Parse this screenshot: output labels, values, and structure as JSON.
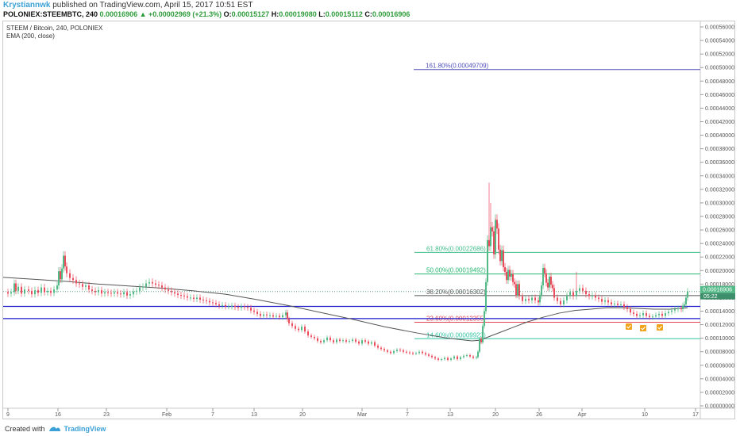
{
  "header": {
    "author": "Krystiannwk",
    "published": "published on TradingView.com, April 15, 2017 10:51 EST",
    "symbol": "POLONIEX:STEEMBTC, 240",
    "last": "0.00016906",
    "change": "▲ +0.00002969 (+21.3%)",
    "o_label": "O:",
    "o": "0.00015127",
    "h_label": "H:",
    "h": "0.00019080",
    "l_label": "L:",
    "l": "0.00015112",
    "c_label": "C:",
    "c": "0.00016906"
  },
  "legend": {
    "series": "STEEM / Bitcoin, 240, POLONIEX",
    "ema": "EMA (200, close)"
  },
  "footer": {
    "created": "Created with",
    "brand": "TradingView"
  },
  "colors": {
    "up": "#53b987",
    "down": "#eb4d5c",
    "ema": "#555555",
    "support": "#1a1acc",
    "current": "#5a9e82"
  },
  "chart_data": {
    "type": "candlestick",
    "ylim": [
      0.0,
      0.00057
    ],
    "y_ticks": [
      "0.00056000",
      "0.00054000",
      "0.00052000",
      "0.00050000",
      "0.00048000",
      "0.00046000",
      "0.00044000",
      "0.00042000",
      "0.00040000",
      "0.00038000",
      "0.00036000",
      "0.00034000",
      "0.00032000",
      "0.00030000",
      "0.00028000",
      "0.00026000",
      "0.00024000",
      "0.00022000",
      "0.00020000",
      "0.00018000",
      "0.00016000",
      "0.00014000",
      "0.00012000",
      "0.00010000",
      "0.00008000",
      "0.00006000",
      "0.00004000",
      "0.00002000",
      "0.00000000"
    ],
    "y_tick_values": [
      0.00056,
      0.00054,
      0.00052,
      0.0005,
      0.00048,
      0.00046,
      0.00044,
      0.00042,
      0.0004,
      0.00038,
      0.00036,
      0.00034,
      0.00032,
      0.0003,
      0.00028,
      0.00026,
      0.00024,
      0.00022,
      0.0002,
      0.00018,
      0.00016,
      0.00014,
      0.00012,
      0.0001,
      8e-05,
      6e-05,
      4e-05,
      2e-05,
      0.0
    ],
    "x_ticks": [
      "9",
      "16",
      "23",
      "Feb",
      "7",
      "13",
      "20",
      "Mar",
      "7",
      "13",
      "20",
      "26",
      "Apr",
      "10",
      "17"
    ],
    "price_series": [
      [
        0,
        0.000168
      ],
      [
        6,
        0.000166
      ],
      [
        10,
        0.000168
      ],
      [
        14,
        0.000181
      ],
      [
        16,
        0.00017
      ],
      [
        19,
        0.000176
      ],
      [
        23,
        0.000166
      ],
      [
        27,
        0.000172
      ],
      [
        32,
        0.00017
      ],
      [
        36,
        0.000165
      ],
      [
        40,
        0.000171
      ],
      [
        44,
        0.000167
      ],
      [
        48,
        0.000175
      ],
      [
        52,
        0.000168
      ],
      [
        56,
        0.00017
      ],
      [
        60,
        0.000167
      ],
      [
        64,
        0.000172
      ],
      [
        68,
        0.000178
      ],
      [
        70,
        0.000199
      ],
      [
        72,
        0.000187
      ],
      [
        74,
        0.000203
      ],
      [
        76,
        0.000222
      ],
      [
        78,
        0.000206
      ],
      [
        80,
        0.000196
      ],
      [
        84,
        0.000189
      ],
      [
        88,
        0.000186
      ],
      [
        92,
        0.000181
      ],
      [
        96,
        0.00018
      ],
      [
        100,
        0.000176
      ],
      [
        104,
        0.000178
      ],
      [
        108,
        0.000172
      ],
      [
        112,
        0.00017
      ],
      [
        116,
        0.000168
      ],
      [
        120,
        0.000171
      ],
      [
        124,
        0.000166
      ],
      [
        128,
        0.000168
      ],
      [
        132,
        0.000167
      ],
      [
        136,
        0.000166
      ],
      [
        140,
        0.000168
      ],
      [
        144,
        0.000166
      ],
      [
        148,
        0.000165
      ],
      [
        152,
        0.000168
      ],
      [
        156,
        0.000163
      ],
      [
        160,
        0.000165
      ],
      [
        164,
        0.000169
      ],
      [
        168,
        0.00017
      ],
      [
        172,
        0.000175
      ],
      [
        176,
        0.000176
      ],
      [
        180,
        0.000181
      ],
      [
        184,
        0.000183
      ],
      [
        188,
        0.000181
      ],
      [
        192,
        0.000179
      ],
      [
        196,
        0.000178
      ],
      [
        200,
        0.000175
      ],
      [
        204,
        0.000172
      ],
      [
        208,
        0.00017
      ],
      [
        212,
        0.000168
      ],
      [
        216,
        0.000166
      ],
      [
        220,
        0.000164
      ],
      [
        224,
        0.000163
      ],
      [
        228,
        0.000162
      ],
      [
        232,
        0.00016
      ],
      [
        236,
        0.00016
      ],
      [
        240,
        0.000158
      ],
      [
        244,
        0.00016
      ],
      [
        248,
        0.000157
      ],
      [
        252,
        0.000156
      ],
      [
        256,
        0.000155
      ],
      [
        260,
        0.000153
      ],
      [
        264,
        0.000152
      ],
      [
        268,
        0.00015
      ],
      [
        272,
        0.000148
      ],
      [
        276,
        0.000149
      ],
      [
        280,
        0.000147
      ],
      [
        284,
        0.000147
      ],
      [
        288,
        0.000148
      ],
      [
        292,
        0.000146
      ],
      [
        296,
        0.000145
      ],
      [
        300,
        0.000147
      ],
      [
        304,
        0.000146
      ],
      [
        308,
        0.000145
      ],
      [
        312,
        0.000141
      ],
      [
        316,
        0.000139
      ],
      [
        320,
        0.000136
      ],
      [
        324,
        0.000133
      ],
      [
        328,
        0.000135
      ],
      [
        332,
        0.000134
      ],
      [
        336,
        0.000134
      ],
      [
        340,
        0.000132
      ],
      [
        344,
        0.000133
      ],
      [
        348,
        0.000131
      ],
      [
        352,
        0.000134
      ],
      [
        356,
        0.000138
      ],
      [
        358,
        0.000128
      ],
      [
        360,
        0.000122
      ],
      [
        364,
        0.000118
      ],
      [
        368,
        0.000114
      ],
      [
        372,
        0.000112
      ],
      [
        376,
        0.000117
      ],
      [
        380,
        0.00011
      ],
      [
        384,
        0.000104
      ],
      [
        388,
        0.000102
      ],
      [
        392,
        0.0001
      ],
      [
        396,
        9.6e-05
      ],
      [
        400,
        9.4e-05
      ],
      [
        404,
        9.7e-05
      ],
      [
        408,
        0.000101
      ],
      [
        412,
        9.7e-05
      ],
      [
        416,
        9.4e-05
      ],
      [
        420,
        9.8e-05
      ],
      [
        424,
        9.6e-05
      ],
      [
        428,
        9.7e-05
      ],
      [
        432,
        9.5e-05
      ],
      [
        436,
        9.6e-05
      ],
      [
        440,
        9.8e-05
      ],
      [
        444,
        9.5e-05
      ],
      [
        448,
        9.2e-05
      ],
      [
        452,
        9.7e-05
      ],
      [
        456,
        9.5e-05
      ],
      [
        460,
        9.2e-05
      ],
      [
        464,
        9.4e-05
      ],
      [
        468,
        8.9e-05
      ],
      [
        472,
        8.6e-05
      ],
      [
        476,
        8.4e-05
      ],
      [
        480,
        8.2e-05
      ],
      [
        484,
        8e-05
      ],
      [
        488,
        7.8e-05
      ],
      [
        492,
        8.1e-05
      ],
      [
        496,
        8.3e-05
      ],
      [
        500,
        8.2e-05
      ],
      [
        504,
        8e-05
      ],
      [
        508,
        7.9e-05
      ],
      [
        512,
        7.8e-05
      ],
      [
        516,
        7.7e-05
      ],
      [
        520,
        7.8e-05
      ],
      [
        524,
        8e-05
      ],
      [
        528,
        7.8e-05
      ],
      [
        532,
        7.6e-05
      ],
      [
        536,
        7.4e-05
      ],
      [
        540,
        7.2e-05
      ],
      [
        544,
        7e-05
      ],
      [
        548,
        6.8e-05
      ],
      [
        552,
        6.9e-05
      ],
      [
        556,
        7.1e-05
      ],
      [
        560,
        6.8e-05
      ],
      [
        564,
        7e-05
      ],
      [
        568,
        7.3e-05
      ],
      [
        572,
        6.9e-05
      ],
      [
        576,
        7.2e-05
      ],
      [
        580,
        7.4e-05
      ],
      [
        584,
        7.5e-05
      ],
      [
        588,
        7.3e-05
      ],
      [
        592,
        7.1e-05
      ],
      [
        596,
        7.2e-05
      ],
      [
        598,
        8e-05
      ],
      [
        600,
        9.9e-05
      ],
      [
        602,
        9.4e-05
      ],
      [
        604,
        0.000118
      ],
      [
        606,
        0.00014
      ],
      [
        608,
        0.000183
      ],
      [
        610,
        0.000245
      ],
      [
        612,
        0.000236
      ],
      [
        614,
        0.000264
      ],
      [
        616,
        0.000258
      ],
      [
        618,
        0.000224
      ],
      [
        620,
        0.000275
      ],
      [
        622,
        0.000262
      ],
      [
        624,
        0.000231
      ],
      [
        626,
        0.000214
      ],
      [
        628,
        0.00023
      ],
      [
        630,
        0.000205
      ],
      [
        632,
        0.000198
      ],
      [
        634,
        0.000186
      ],
      [
        636,
        0.000201
      ],
      [
        638,
        0.000191
      ],
      [
        640,
        0.000195
      ],
      [
        642,
        0.000183
      ],
      [
        644,
        0.00018
      ],
      [
        646,
        0.000164
      ],
      [
        648,
        0.00018
      ],
      [
        650,
        0.000162
      ],
      [
        654,
        0.000155
      ],
      [
        658,
        0.000158
      ],
      [
        662,
        0.000156
      ],
      [
        666,
        0.00016
      ],
      [
        670,
        0.000156
      ],
      [
        674,
        0.000153
      ],
      [
        676,
        0.000163
      ],
      [
        678,
        0.000178
      ],
      [
        680,
        0.000204
      ],
      [
        682,
        0.000196
      ],
      [
        684,
        0.000182
      ],
      [
        686,
        0.000175
      ],
      [
        688,
        0.000191
      ],
      [
        690,
        0.000179
      ],
      [
        692,
        0.000174
      ],
      [
        694,
        0.00016
      ],
      [
        698,
        0.000155
      ],
      [
        702,
        0.00015
      ],
      [
        706,
        0.000156
      ],
      [
        710,
        0.000163
      ],
      [
        714,
        0.000168
      ],
      [
        718,
        0.000162
      ],
      [
        722,
        0.00017
      ],
      [
        726,
        0.000174
      ],
      [
        730,
        0.00017
      ],
      [
        734,
        0.000165
      ],
      [
        738,
        0.000162
      ],
      [
        742,
        0.000163
      ],
      [
        746,
        0.00016
      ],
      [
        750,
        0.000158
      ],
      [
        754,
        0.000154
      ],
      [
        758,
        0.000156
      ],
      [
        762,
        0.000153
      ],
      [
        766,
        0.00015
      ],
      [
        770,
        0.000151
      ],
      [
        774,
        0.000149
      ],
      [
        778,
        0.00015
      ],
      [
        782,
        0.000146
      ],
      [
        786,
        0.000143
      ],
      [
        790,
        0.000138
      ],
      [
        794,
        0.000136
      ],
      [
        798,
        0.000133
      ],
      [
        802,
        0.000134
      ],
      [
        806,
        0.000137
      ],
      [
        810,
        0.000133
      ],
      [
        814,
        0.000131
      ],
      [
        818,
        0.000132
      ],
      [
        822,
        0.000134
      ],
      [
        826,
        0.000136
      ],
      [
        830,
        0.000133
      ],
      [
        834,
        0.000137
      ],
      [
        838,
        0.000139
      ],
      [
        842,
        0.000141
      ],
      [
        846,
        0.000143
      ],
      [
        850,
        0.000144
      ],
      [
        854,
        0.000143
      ],
      [
        856,
        0.000148
      ],
      [
        858,
        0.00015
      ],
      [
        860,
        0.00016
      ],
      [
        862,
        0.000169
      ]
    ],
    "ema_series": [
      [
        0,
        0.00019
      ],
      [
        40,
        0.000187
      ],
      [
        80,
        0.000184
      ],
      [
        120,
        0.00018
      ],
      [
        160,
        0.000177
      ],
      [
        200,
        0.000174
      ],
      [
        240,
        0.00017
      ],
      [
        280,
        0.000165
      ],
      [
        320,
        0.000157
      ],
      [
        360,
        0.000148
      ],
      [
        400,
        0.000138
      ],
      [
        440,
        0.000128
      ],
      [
        480,
        0.000117
      ],
      [
        520,
        0.000108
      ],
      [
        560,
        0.0001
      ],
      [
        590,
        9.6e-05
      ],
      [
        600,
        9.7e-05
      ],
      [
        620,
        0.000106
      ],
      [
        640,
        0.000115
      ],
      [
        660,
        0.000124
      ],
      [
        680,
        0.000131
      ],
      [
        700,
        0.000137
      ],
      [
        720,
        0.000141
      ],
      [
        740,
        0.000143
      ],
      [
        760,
        0.000145
      ],
      [
        780,
        0.000145
      ],
      [
        800,
        0.000144
      ],
      [
        820,
        0.000143
      ],
      [
        840,
        0.000143
      ],
      [
        862,
        0.000145
      ]
    ],
    "fib_levels": [
      {
        "label": "161.80%(0.00049709)",
        "value": 0.00049709,
        "color": "#5050bb"
      },
      {
        "label": "61.80%(0.00022686)",
        "value": 0.00022686,
        "color": "#42be8a"
      },
      {
        "label": "50.00%(0.00019492)",
        "value": 0.00019492,
        "color": "#27b76f"
      },
      {
        "label": "38.20%(0.00016302)",
        "value": 0.00016302,
        "color": "#555555"
      },
      {
        "label": "23.60%(0.00012355)",
        "value": 0.00012355,
        "color": "#e0464f"
      },
      {
        "label": "14.60%(0.00009923)",
        "value": 9.923e-05,
        "color": "#35c4a4"
      }
    ],
    "support_lines": [
      0.000147,
      0.000129
    ],
    "current_price_label": "0.00016906",
    "current_time_label": "05:22"
  }
}
